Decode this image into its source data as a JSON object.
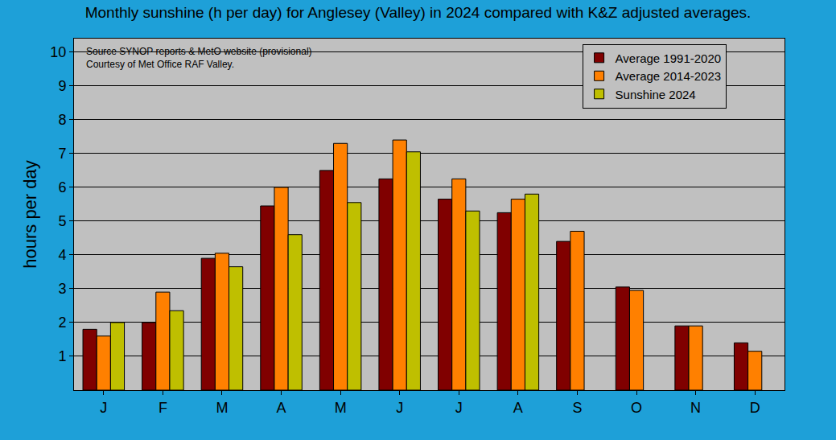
{
  "chart_data": {
    "type": "bar",
    "title": "Monthly sunshine (h per day) for Anglesey (Valley) in 2024 compared with K&Z adjusted averages.",
    "y_label": "hours per day",
    "annotations": [
      "Source SYNOP reports & MetO website (provisional)",
      "Courtesy of Met Office RAF Valley."
    ],
    "categories": [
      "J",
      "F",
      "M",
      "A",
      "M",
      "J",
      "J",
      "A",
      "S",
      "O",
      "N",
      "D"
    ],
    "series": [
      {
        "name": "Average 1991-2020",
        "color": "#800000",
        "values": [
          1.8,
          2.0,
          3.9,
          5.45,
          6.5,
          6.25,
          5.65,
          5.25,
          4.4,
          3.05,
          1.9,
          1.4
        ]
      },
      {
        "name": "Average 2014-2023",
        "color": "#ff8000",
        "values": [
          1.6,
          2.9,
          4.05,
          6.0,
          7.3,
          7.4,
          6.25,
          5.65,
          4.7,
          2.95,
          1.9,
          1.15
        ]
      },
      {
        "name": "Sunshine 2024",
        "color": "#bfbf00",
        "values": [
          2.0,
          2.35,
          3.65,
          4.6,
          5.55,
          7.05,
          5.3,
          5.8,
          null,
          null,
          null,
          null
        ]
      }
    ],
    "ylim": [
      0,
      10.4
    ],
    "yticks": [
      1,
      2,
      3,
      4,
      5,
      6,
      7,
      8,
      9,
      10
    ],
    "y2lim": [
      0,
      10.4
    ],
    "y2ticks": [
      1,
      2,
      3,
      4,
      5,
      6,
      7,
      8,
      9,
      10
    ],
    "grid": true,
    "legend": "top right"
  }
}
